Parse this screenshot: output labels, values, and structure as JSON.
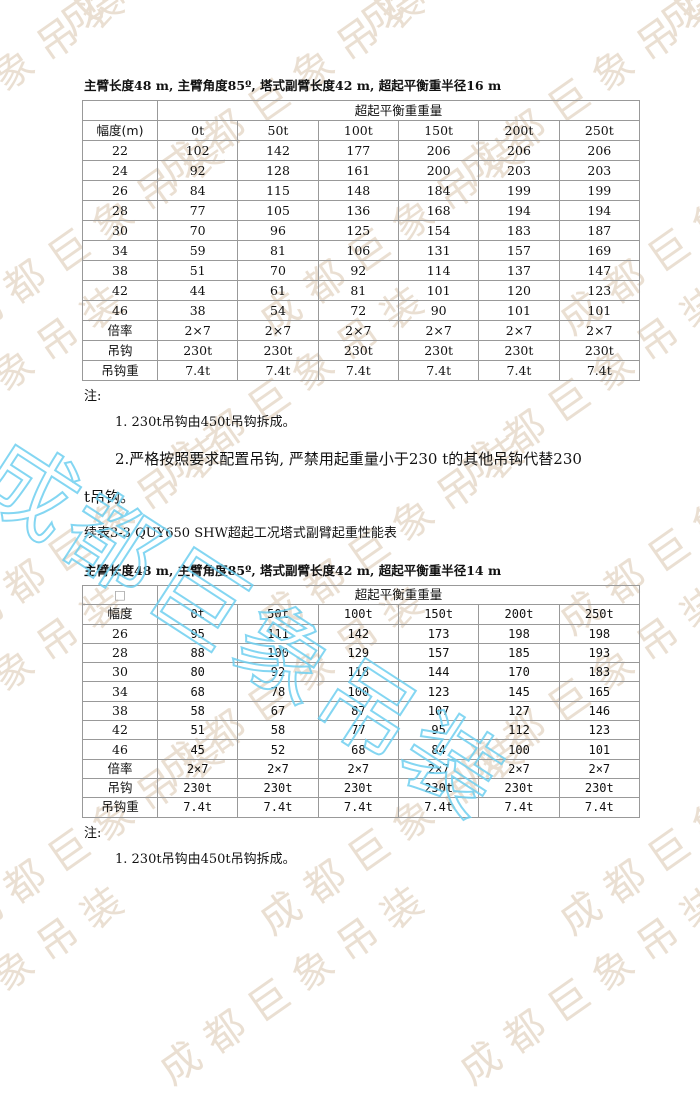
{
  "watermark": "成都巨象吊装",
  "table1": {
    "caption": "主臂长度48 m, 主臂角度85º, 塔式副臂长度42 m, 超起平衡重半径16 m",
    "group_header": "超起平衡重重量",
    "row_header": "幅度(m)",
    "columns": [
      "0t",
      "50t",
      "100t",
      "150t",
      "200t",
      "250t"
    ],
    "rows": [
      {
        "label": "22",
        "values": [
          "102",
          "142",
          "177",
          "206",
          "206",
          "206"
        ]
      },
      {
        "label": "24",
        "values": [
          "92",
          "128",
          "161",
          "200",
          "203",
          "203"
        ]
      },
      {
        "label": "26",
        "values": [
          "84",
          "115",
          "148",
          "184",
          "199",
          "199"
        ]
      },
      {
        "label": "28",
        "values": [
          "77",
          "105",
          "136",
          "168",
          "194",
          "194"
        ]
      },
      {
        "label": "30",
        "values": [
          "70",
          "96",
          "125",
          "154",
          "183",
          "187"
        ]
      },
      {
        "label": "34",
        "values": [
          "59",
          "81",
          "106",
          "131",
          "157",
          "169"
        ]
      },
      {
        "label": "38",
        "values": [
          "51",
          "70",
          "92",
          "114",
          "137",
          "147"
        ]
      },
      {
        "label": "42",
        "values": [
          "44",
          "61",
          "81",
          "101",
          "120",
          "123"
        ]
      },
      {
        "label": "46",
        "values": [
          "38",
          "54",
          "72",
          "90",
          "101",
          "101"
        ]
      },
      {
        "label": "倍率",
        "values": [
          "2×7",
          "2×7",
          "2×7",
          "2×7",
          "2×7",
          "2×7"
        ]
      },
      {
        "label": "吊钩",
        "values": [
          "230t",
          "230t",
          "230t",
          "230t",
          "230t",
          "230t"
        ]
      },
      {
        "label": "吊钩重",
        "values": [
          "7.4t",
          "7.4t",
          "7.4t",
          "7.4t",
          "7.4t",
          "7.4t"
        ]
      }
    ]
  },
  "notes1": {
    "title": "注:",
    "items": [
      "1. 230t吊钩由450t吊钩拆成。",
      "2.严格按照要求配置吊钩, 严禁用起重量小于230 t的其他吊钩代替230",
      "t吊钩。"
    ]
  },
  "table2_title": "续表3-3 QUY650 SHW超起工况塔式副臂起重性能表",
  "table2": {
    "caption": "主臂长度48 m, 主臂角度85º, 塔式副臂长度42 m, 超起平衡重半径14 m",
    "corner": "□",
    "group_header": "超起平衡重重量",
    "row_header": "幅度",
    "columns": [
      "0t",
      "50t",
      "100t",
      "150t",
      "200t",
      "250t"
    ],
    "rows": [
      {
        "label": "26",
        "values": [
          "95",
          "111",
          "142",
          "173",
          "198",
          "198"
        ]
      },
      {
        "label": "28",
        "values": [
          "88",
          "100",
          "129",
          "157",
          "185",
          "193"
        ]
      },
      {
        "label": "30",
        "values": [
          "80",
          "92",
          "118",
          "144",
          "170",
          "183"
        ]
      },
      {
        "label": "34",
        "values": [
          "68",
          "78",
          "100",
          "123",
          "145",
          "165"
        ]
      },
      {
        "label": "38",
        "values": [
          "58",
          "67",
          "87",
          "107",
          "127",
          "146"
        ]
      },
      {
        "label": "42",
        "values": [
          "51",
          "58",
          "77",
          "95",
          "112",
          "123"
        ]
      },
      {
        "label": "46",
        "values": [
          "45",
          "52",
          "68",
          "84",
          "100",
          "101"
        ]
      },
      {
        "label": "倍率",
        "values": [
          "2×7",
          "2×7",
          "2×7",
          "2×7",
          "2×7",
          "2×7"
        ]
      },
      {
        "label": "吊钩",
        "values": [
          "230t",
          "230t",
          "230t",
          "230t",
          "230t",
          "230t"
        ]
      },
      {
        "label": "吊钩重",
        "values": [
          "7.4t",
          "7.4t",
          "7.4t",
          "7.4t",
          "7.4t",
          "7.4t"
        ]
      }
    ]
  },
  "notes2": {
    "title": "注:",
    "items": [
      "1. 230t吊钩由450t吊钩拆成。"
    ]
  }
}
